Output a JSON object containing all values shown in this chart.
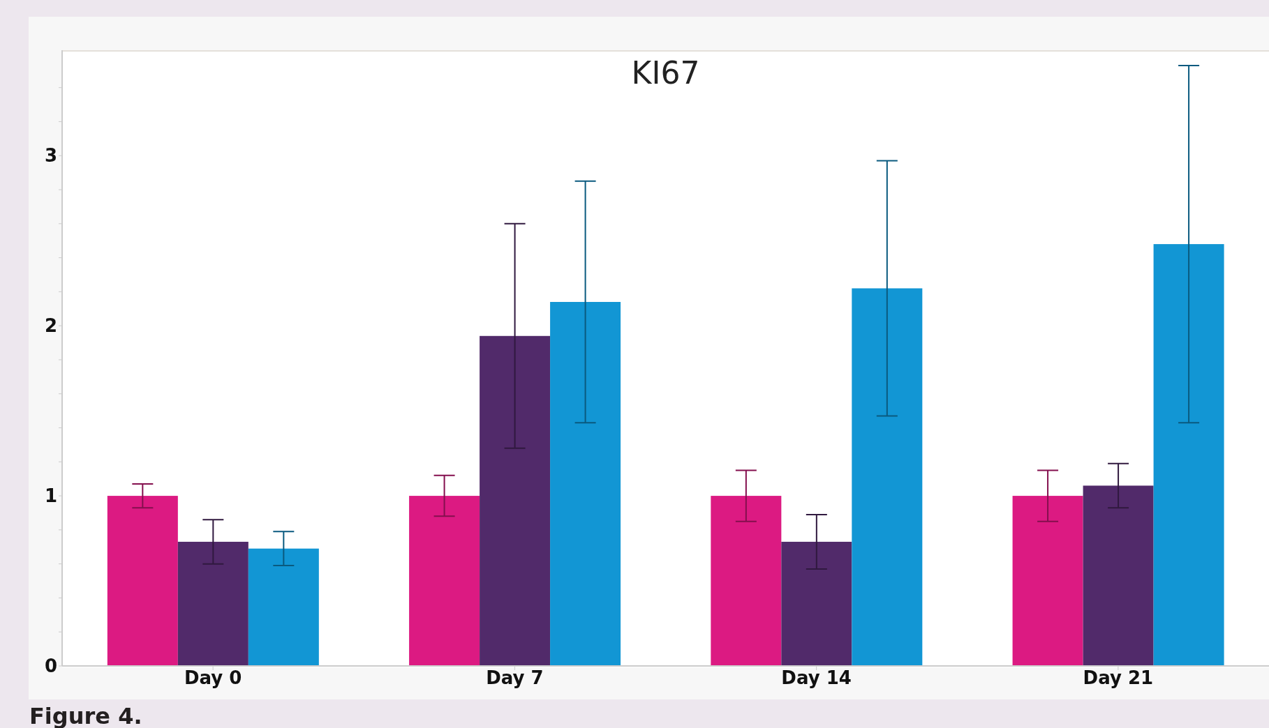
{
  "chart_data": {
    "type": "bar",
    "title": "KI67",
    "categories": [
      "Day 0",
      "Day 7",
      "Day 14",
      "Day 21"
    ],
    "series": [
      {
        "color": "#dc1a82",
        "values": [
          1.0,
          1.0,
          1.0,
          1.0
        ],
        "errors": [
          0.07,
          0.12,
          0.15,
          0.15
        ]
      },
      {
        "color": "#512a6a",
        "values": [
          0.73,
          1.94,
          0.73,
          1.06
        ],
        "errors": [
          0.13,
          0.66,
          0.16,
          0.13
        ]
      },
      {
        "color": "#1296d4",
        "values": [
          0.69,
          2.14,
          2.22,
          2.48
        ],
        "errors": [
          0.1,
          0.71,
          0.75,
          1.05
        ]
      }
    ],
    "ylim": [
      0,
      3.62
    ],
    "yticks": [
      0,
      {
        "value": 0.2,
        "label": null
      },
      {
        "value": 0.4,
        "label": null
      },
      {
        "value": 0.6,
        "label": null
      },
      {
        "value": 0.8,
        "label": null
      },
      1,
      {
        "value": 1.2,
        "label": null
      },
      {
        "value": 1.4,
        "label": null
      },
      {
        "value": 1.6,
        "label": null
      },
      {
        "value": 1.8,
        "label": null
      },
      2,
      {
        "value": 2.2,
        "label": null
      },
      {
        "value": 2.4,
        "label": null
      },
      {
        "value": 2.6,
        "label": null
      },
      {
        "value": 2.8,
        "label": null
      },
      3,
      {
        "value": 3.2,
        "label": null
      },
      {
        "value": 3.4,
        "label": null
      }
    ],
    "grid": false,
    "legend": false,
    "annotations": [
      "Figure 4."
    ]
  }
}
